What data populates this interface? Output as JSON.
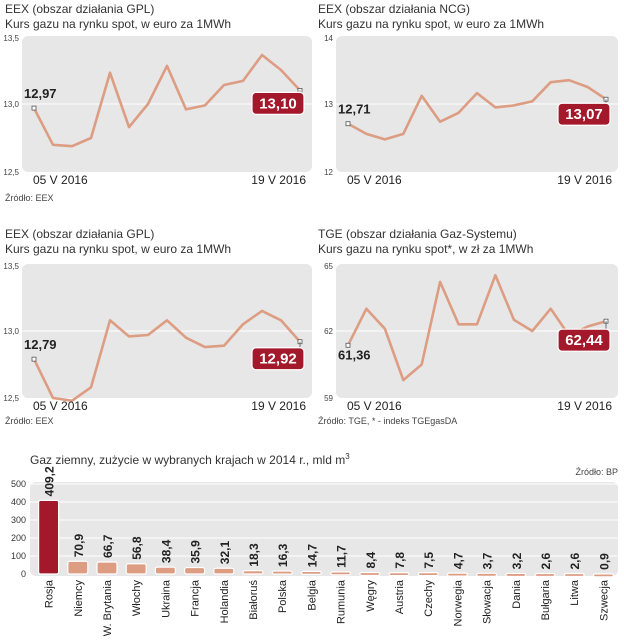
{
  "chart_data": [
    {
      "type": "line",
      "title": "EEX (obszar działania GPL)",
      "subtitle": "Kurs gazu na rynku spot, w euro za 1MWh",
      "ylim": [
        12.5,
        13.5
      ],
      "yticks": [
        "13,5",
        "13,0",
        "12,5"
      ],
      "xlabel_start": "05 V 2016",
      "xlabel_end": "19 V 2016",
      "start_label": "12,97",
      "end_label": "13,10",
      "values": [
        12.97,
        12.7,
        12.69,
        12.75,
        13.23,
        12.83,
        13.0,
        13.28,
        12.96,
        12.99,
        13.14,
        13.17,
        13.36,
        13.25,
        13.1
      ],
      "source": "Źródło: EEX"
    },
    {
      "type": "line",
      "title": "EEX (obszar działania NCG)",
      "subtitle": "Kurs gazu na rynku spot, w euro za 1MWh",
      "ylim": [
        12,
        14
      ],
      "yticks": [
        "14",
        "13",
        "12"
      ],
      "xlabel_start": "05 V 2016",
      "xlabel_end": "19 V 2016",
      "start_label": "12,71",
      "end_label": "13,07",
      "values": [
        12.71,
        12.56,
        12.48,
        12.56,
        13.12,
        12.74,
        12.87,
        13.16,
        12.95,
        12.98,
        13.04,
        13.32,
        13.35,
        13.25,
        13.07
      ],
      "source": ""
    },
    {
      "type": "line",
      "title": "EEX (obszar działania GPL)",
      "subtitle": "Kurs gazu na rynku spot, w euro za 1MWh",
      "ylim": [
        12.5,
        13.5
      ],
      "yticks": [
        "13,5",
        "13,0",
        "12,5"
      ],
      "xlabel_start": "05 V 2016",
      "xlabel_end": "19 V 2016",
      "start_label": "12,79",
      "end_label": "12,92",
      "values": [
        12.79,
        12.5,
        12.48,
        12.58,
        13.08,
        12.96,
        12.97,
        13.08,
        12.95,
        12.88,
        12.89,
        13.05,
        13.15,
        13.08,
        12.92
      ],
      "source": "Źródło: EEX"
    },
    {
      "type": "line",
      "title": "TGE (obszar działania Gaz-Systemu)",
      "subtitle": "Kurs gazu na rynku spot*, w zł za 1MWh",
      "ylim": [
        59,
        65
      ],
      "yticks": [
        "65",
        "62",
        "59"
      ],
      "xlabel_start": "05 V 2016",
      "xlabel_end": "19 V 2016",
      "start_label": "61,36",
      "end_label": "62,44",
      "values": [
        61.36,
        63.0,
        62.1,
        59.8,
        60.5,
        64.2,
        62.3,
        62.3,
        64.5,
        62.5,
        62.0,
        63.0,
        61.8,
        62.2,
        62.44
      ],
      "source": "Źródło: TGE, * - indeks TGEgasDA"
    },
    {
      "type": "bar",
      "title": "Gaz ziemny, zużycie w wybranych krajach w 2014 r., mld m",
      "title_sup": "3",
      "source": "Źródło: BP",
      "ylim": [
        0,
        500
      ],
      "yticks": [
        0,
        100,
        200,
        300,
        400,
        500
      ],
      "categories": [
        "Rosja",
        "Niemcy",
        "W. Brytania",
        "Włochy",
        "Ukraina",
        "Francja",
        "Holandia",
        "Białoruś",
        "Polska",
        "Belgia",
        "Rumunia",
        "Węgry",
        "Austria",
        "Czechy",
        "Norwegia",
        "Słowacja",
        "Dania",
        "Bułgaria",
        "Litwa",
        "Szwecja"
      ],
      "values": [
        409.2,
        70.9,
        66.7,
        56.8,
        38.4,
        35.9,
        32.1,
        18.3,
        16.3,
        14.7,
        11.7,
        8.4,
        7.8,
        7.5,
        4.7,
        3.7,
        3.2,
        2.6,
        2.6,
        0.9
      ],
      "value_labels": [
        "409,2",
        "70,9",
        "66,7",
        "56,8",
        "38,4",
        "35,9",
        "32,1",
        "18,3",
        "16,3",
        "14,7",
        "11,7",
        "8,4",
        "7,8",
        "7,5",
        "4,7",
        "3,7",
        "3,2",
        "2,6",
        "2,6",
        "0,9"
      ]
    }
  ],
  "colors": {
    "panel_bg": "#e7e7e8",
    "line": "#dd9d82",
    "badge": "#a3182a",
    "highlight_bar": "#a3182a",
    "bar": "#dd9d82",
    "grid": "#ffffff",
    "text": "#222222"
  }
}
